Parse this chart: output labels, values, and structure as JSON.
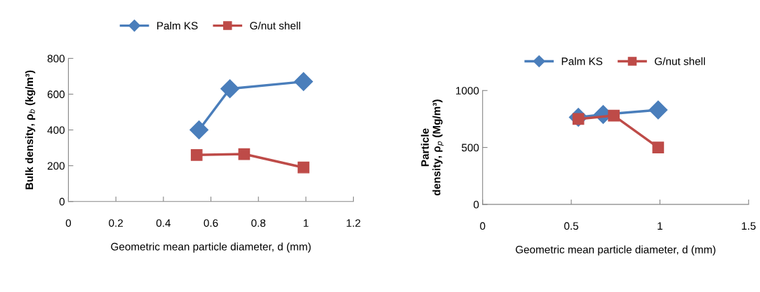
{
  "chart_data": [
    {
      "type": "line",
      "xlabel": "Geometric mean particle diameter, d (mm)",
      "ylabel": "Bulk density, ρ$_{b}$ (kg/m³)",
      "xlim": [
        0,
        1.2
      ],
      "xticks": [
        0,
        0.2,
        0.4,
        0.6,
        0.8,
        1,
        1.2
      ],
      "ylim": [
        0,
        800
      ],
      "yticks": [
        0,
        200,
        400,
        600,
        800
      ],
      "grid": false,
      "legend": "top",
      "line_style": "solid",
      "series": [
        {
          "name": "Palm KS",
          "color": "#4a7ebb",
          "marker": "diamond",
          "x": [
            0.55,
            0.68,
            0.99
          ],
          "values": [
            400,
            630,
            670
          ]
        },
        {
          "name": "G/nut shell",
          "color": "#be4b48",
          "marker": "square",
          "x": [
            0.54,
            0.74,
            0.99
          ],
          "values": [
            260,
            265,
            190
          ]
        }
      ]
    },
    {
      "type": "line",
      "xlabel": "Geometric mean particle diameter, d (mm)",
      "ylabel": "Particle\ndensity, ρ$_{p}$ (Mg/m³)",
      "xlim": [
        0,
        1.5
      ],
      "xticks": [
        0,
        0.5,
        1,
        1.5
      ],
      "ylim": [
        0,
        1000
      ],
      "yticks": [
        0,
        500,
        1000
      ],
      "grid": false,
      "legend": "top",
      "line_style": "solid",
      "series": [
        {
          "name": "Palm KS",
          "color": "#4a7ebb",
          "marker": "diamond",
          "x": [
            0.54,
            0.68,
            0.99
          ],
          "values": [
            765,
            790,
            830
          ]
        },
        {
          "name": "G/nut shell",
          "color": "#be4b48",
          "marker": "square",
          "x": [
            0.54,
            0.74,
            0.99
          ],
          "values": [
            750,
            780,
            500
          ]
        }
      ]
    }
  ]
}
